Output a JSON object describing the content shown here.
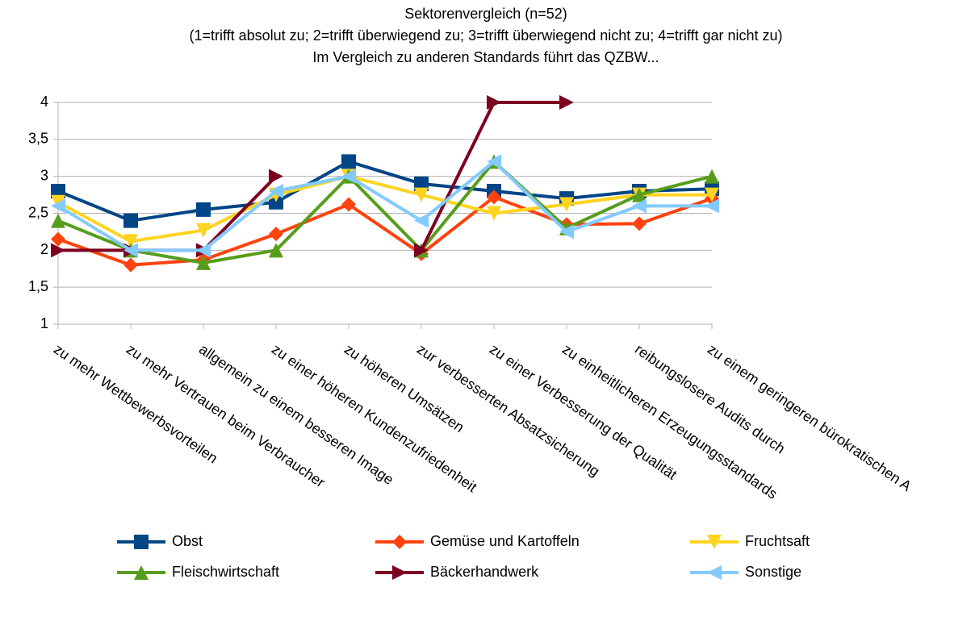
{
  "chart_data": {
    "type": "line",
    "title": "Sektorenvergleich (n=52)",
    "subtitle": [
      "(1=trifft absolut zu; 2=trifft überwiegend zu; 3=trifft überwiegend nicht zu; 4=trifft gar nicht zu)",
      "Im Vergleich zu anderen Standards führt das QZBW..."
    ],
    "categories": [
      "zu mehr Wettbewerbsvorteilen",
      "zu mehr Vertrauen beim Verbraucher",
      "allgemein zu einem besseren Image",
      "zu einer höheren Kundenzufriedenheit",
      "zu höheren Umsätzen",
      "zur verbesserten Absatzsicherung",
      "zu einer Verbesserung der Qualität",
      "zu einheitlicheren Erzeugungsstandards",
      "reibungslosere Audits durch",
      "zu einem geringeren bürokratischen A"
    ],
    "series": [
      {
        "name": "Obst",
        "color": "#004586",
        "marker": "square",
        "values": [
          2.8,
          2.4,
          2.55,
          2.65,
          3.2,
          2.9,
          2.8,
          2.7,
          2.8,
          2.83
        ]
      },
      {
        "name": "Gemüse und Kartoffeln",
        "color": "#ff420e",
        "marker": "diamond",
        "values": [
          2.15,
          1.8,
          1.87,
          2.22,
          2.62,
          1.95,
          2.72,
          2.35,
          2.36,
          2.7
        ]
      },
      {
        "name": "Fruchtsaft",
        "color": "#ffd320",
        "marker": "triangle-down",
        "values": [
          2.65,
          2.12,
          2.27,
          2.75,
          3.0,
          2.75,
          2.5,
          2.62,
          2.75,
          2.75
        ]
      },
      {
        "name": "Fleischwirtschaft",
        "color": "#579d1c",
        "marker": "triangle-up",
        "values": [
          2.4,
          2.0,
          1.83,
          2.0,
          3.0,
          2.0,
          3.2,
          2.3,
          2.75,
          3.0
        ]
      },
      {
        "name": "Bäckerhandwerk",
        "color": "#7e0021",
        "marker": "triangle-right",
        "values": [
          2,
          2,
          2,
          3,
          null,
          2,
          4,
          4,
          null,
          null
        ]
      },
      {
        "name": "Sonstige",
        "color": "#83caff",
        "marker": "triangle-left",
        "values": [
          2.6,
          2.0,
          2.0,
          2.8,
          3.0,
          2.4,
          3.2,
          2.25,
          2.6,
          2.6
        ]
      }
    ],
    "ylim": [
      1,
      4
    ],
    "yticks": [
      1,
      {
        "value": 1.5,
        "label": "1,5"
      },
      2,
      {
        "value": 2.5,
        "label": "2,5"
      },
      3,
      {
        "value": 3.5,
        "label": "3,5"
      },
      4
    ],
    "grid": true,
    "legend": "bottom"
  }
}
